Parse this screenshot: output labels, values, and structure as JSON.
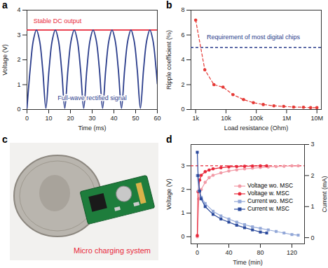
{
  "chart_data": [
    {
      "type": "line",
      "title": "a",
      "xlabel": "Time (ms)",
      "ylabel": "Voltage (V)",
      "xlim": [
        0,
        60
      ],
      "xticks": [
        0,
        10,
        20,
        30,
        40,
        50,
        60
      ],
      "ylim": [
        0,
        4
      ],
      "yticks": [
        0,
        1,
        2,
        3,
        4
      ],
      "series": [
        {
          "color": "#e8283a",
          "x": [
            0,
            60
          ],
          "values": [
            3.2,
            3.2
          ]
        },
        {
          "color": "#2b3d8c",
          "x": [
            0,
            1.45,
            2.9,
            4.35,
            5.8,
            7.25,
            8.7,
            10.15,
            11.6,
            13.05,
            14.5,
            15.95,
            17.4,
            18.85,
            20.3,
            21.75,
            23.2,
            24.65,
            26.1,
            27.55,
            29,
            30.45,
            31.9,
            33.35,
            34.8,
            36.25,
            37.7,
            39.15,
            40.6,
            42.05,
            43.5,
            44.95,
            46.4,
            47.85,
            49.3,
            50.75,
            52.2,
            53.65,
            55.1,
            56.55,
            58,
            59.45,
            60
          ],
          "values": [
            0.05,
            1.6,
            2.77,
            3.2,
            2.77,
            1.6,
            0.05,
            1.6,
            2.77,
            3.2,
            2.77,
            1.6,
            0.05,
            1.6,
            2.77,
            3.2,
            2.77,
            1.6,
            0.05,
            1.6,
            2.77,
            3.2,
            2.77,
            1.6,
            0.05,
            1.6,
            2.77,
            3.2,
            2.77,
            1.6,
            0.05,
            1.6,
            2.77,
            3.2,
            2.77,
            1.6,
            0.05,
            1.6,
            2.77,
            3.2,
            2.77,
            1.6,
            1.04
          ]
        }
      ],
      "annotations": [
        {
          "text": "Stable DC output",
          "x": 14,
          "y": 3.55,
          "color": "#e8283a"
        },
        {
          "text": "Full-wave rectified signal",
          "x": 30,
          "y": 0.45,
          "color": "#2b3d8c"
        }
      ]
    },
    {
      "type": "line",
      "title": "b",
      "xlabel": "Load resistance (Ohm)",
      "ylabel": "Ripple coefficient (%)",
      "log": "x",
      "xlim": [
        700,
        14000000
      ],
      "xticks": [
        {
          "value": 1000,
          "label": "1k"
        },
        {
          "value": 10000,
          "label": "10k"
        },
        {
          "value": 100000,
          "label": "100k"
        },
        {
          "value": 1000000,
          "label": "1M"
        },
        {
          "value": 10000000,
          "label": "10M"
        }
      ],
      "ylim": [
        0,
        8
      ],
      "yticks": [
        0,
        2,
        4,
        6,
        8
      ],
      "series": [
        {
          "color": "#e53935",
          "marker": "circle",
          "line_style": "dashed",
          "x": [
            1000,
            2000,
            4000,
            8000,
            17000,
            38000,
            80000,
            170000,
            380000,
            800000,
            1700000,
            3600000,
            6200000,
            10000000
          ],
          "values": [
            7.2,
            3.2,
            2.0,
            1.8,
            1.2,
            0.8,
            0.55,
            0.4,
            0.3,
            0.25,
            0.2,
            0.18,
            0.15,
            0.15
          ]
        }
      ],
      "reference_lines": [
        {
          "y": 5,
          "color": "#2b3d8c",
          "line_style": "dashed"
        }
      ],
      "annotations": [
        {
          "text": "Requirement of most digital chips",
          "x": 80000,
          "y": 5.8,
          "color": "#2b3d8c"
        }
      ]
    },
    {
      "type": "line",
      "title": "d",
      "xlabel": "Time (min)",
      "ylabel": "Voltage (V)",
      "y2label": "Current (mA)",
      "xlim": [
        -8,
        136
      ],
      "xticks": [
        0,
        40,
        80,
        120
      ],
      "ylim": [
        -0.3,
        3.9
      ],
      "yticks": [
        0,
        1,
        2,
        3
      ],
      "y2lim": [
        -0.2,
        3
      ],
      "y2ticks": [
        0,
        1,
        2,
        3
      ],
      "legend": "right",
      "series": [
        {
          "name": "Voltage wo. MSC",
          "color": "#f29aa6",
          "marker": "circle",
          "x": [
            0,
            2,
            5,
            10,
            15,
            20,
            30,
            40,
            50,
            60,
            70,
            80,
            90,
            100,
            110,
            120,
            128
          ],
          "values": [
            0,
            1.6,
            2.0,
            2.3,
            2.5,
            2.6,
            2.7,
            2.78,
            2.83,
            2.87,
            2.9,
            2.93,
            2.95,
            2.97,
            2.98,
            3.0,
            3.0
          ]
        },
        {
          "name": "Voltage w. MSC",
          "color": "#e8283a",
          "marker": "circle",
          "x": [
            0,
            1,
            3,
            5,
            10,
            15,
            20,
            30,
            40,
            50,
            60,
            70,
            80,
            88
          ],
          "values": [
            0.05,
            1.9,
            2.4,
            2.6,
            2.75,
            2.82,
            2.87,
            2.92,
            2.95,
            2.97,
            2.98,
            2.99,
            3.0,
            3.0
          ]
        },
        {
          "name": "Current wo. MSC",
          "color": "#93a8d8",
          "marker": "square",
          "axis": "y2",
          "x": [
            0,
            2,
            5,
            10,
            20,
            30,
            40,
            50,
            60,
            70,
            80,
            90,
            100,
            110,
            120,
            128
          ],
          "values": [
            2.0,
            1.5,
            1.3,
            1.1,
            0.85,
            0.7,
            0.6,
            0.5,
            0.42,
            0.35,
            0.3,
            0.25,
            0.2,
            0.15,
            0.1,
            0.08
          ]
        },
        {
          "name": "Current w. MSC",
          "color": "#2b4a9c",
          "marker": "square",
          "axis": "y2",
          "x": [
            0,
            1,
            3,
            5,
            10,
            20,
            30,
            40,
            50,
            60,
            70,
            80,
            88
          ],
          "values": [
            2.75,
            2.0,
            1.5,
            1.25,
            1.0,
            0.75,
            0.6,
            0.5,
            0.4,
            0.32,
            0.25,
            0.18,
            0.15
          ]
        }
      ],
      "reference_lines": [
        {
          "y": 3,
          "color": "#e8283a",
          "line_style": "dashed"
        }
      ]
    }
  ],
  "image": {
    "title": "c",
    "caption": "Micro charging system"
  }
}
